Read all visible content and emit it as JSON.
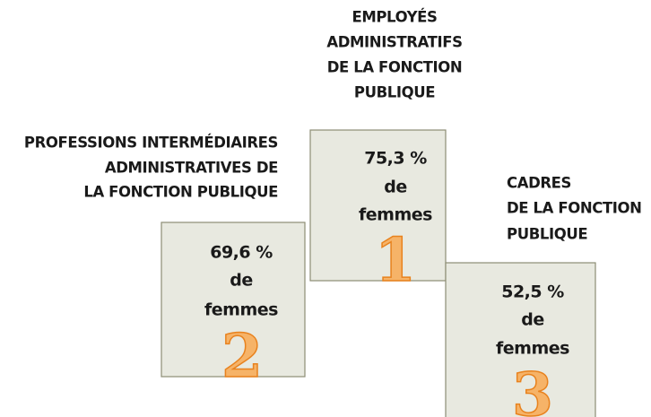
{
  "podium": [
    {
      "label": [
        "EMPLOYÉS",
        "ADMINISTRATIFS",
        "DE LA FONCTION",
        "PUBLIQUE"
      ],
      "value": "75,3 %",
      "text": [
        "de",
        "femmes"
      ],
      "rank": "1"
    },
    {
      "label": [
        "PROFESSIONS INTERMÉDIAIRES",
        "ADMINISTRATIVES DE",
        "LA FONCTION PUBLIQUE"
      ],
      "value": "69,6 %",
      "text": [
        "de",
        "femmes"
      ],
      "rank": "2"
    },
    {
      "label": [
        "CADRES",
        "DE LA FONCTION",
        "PUBLIQUE"
      ],
      "value": "52,5 %",
      "text": [
        "de",
        "femmes"
      ],
      "rank": "3"
    }
  ]
}
